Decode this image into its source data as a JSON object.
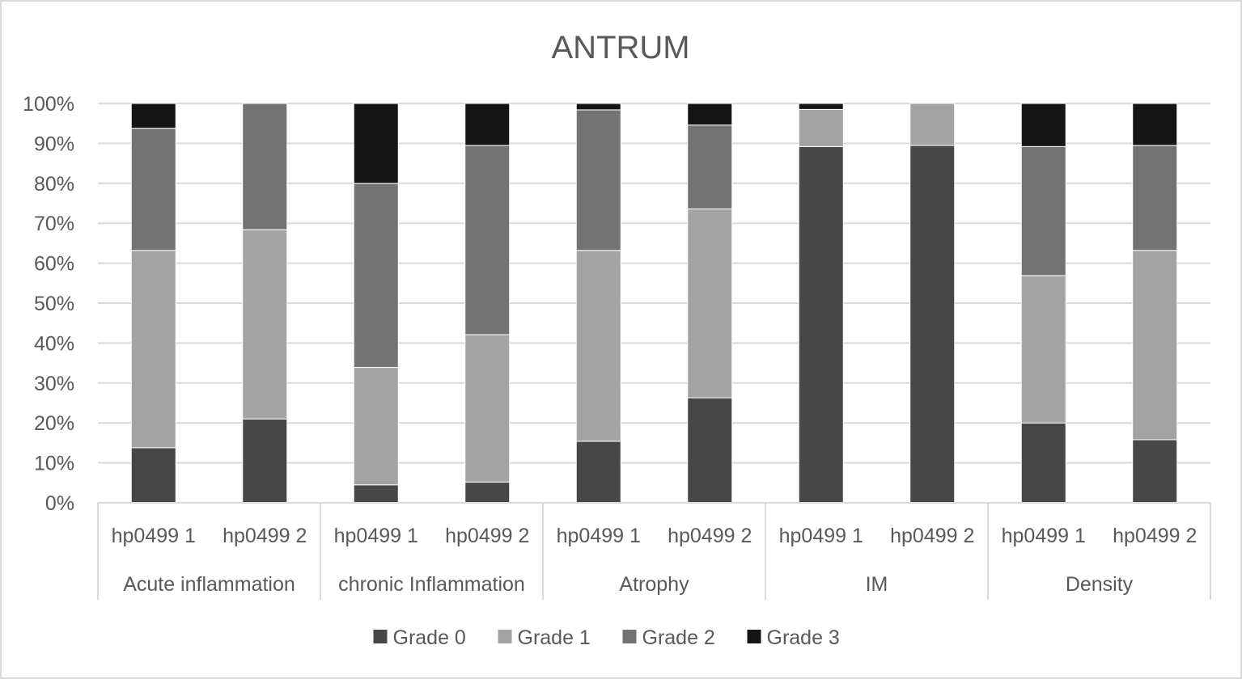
{
  "chart_data": {
    "type": "bar",
    "stacked": "percent",
    "title": "ANTRUM",
    "xlabel": "",
    "ylabel": "",
    "ylim": [
      0,
      100
    ],
    "y_ticks": [
      "0%",
      "10%",
      "20%",
      "30%",
      "40%",
      "50%",
      "60%",
      "70%",
      "80%",
      "90%",
      "100%"
    ],
    "grid": true,
    "legend_position": "bottom",
    "groups": [
      {
        "label": "Acute inflammation",
        "categories": [
          "hp0499 1",
          "hp0499 2"
        ]
      },
      {
        "label": "chronic Inflammation",
        "categories": [
          "hp0499 1",
          "hp0499 2"
        ]
      },
      {
        "label": "Atrophy",
        "categories": [
          "hp0499 1",
          "hp0499 2"
        ]
      },
      {
        "label": "IM",
        "categories": [
          "hp0499 1",
          "hp0499 2"
        ]
      },
      {
        "label": "Density",
        "categories": [
          "hp0499 1",
          "hp0499 2"
        ]
      }
    ],
    "series": [
      {
        "name": "Grade 0",
        "color": "#474747",
        "values": [
          13.8,
          21.0,
          4.5,
          5.2,
          15.4,
          26.3,
          89.2,
          89.5,
          20.0,
          15.8
        ]
      },
      {
        "name": "Grade 1",
        "color": "#a3a3a3",
        "values": [
          49.4,
          47.4,
          29.4,
          36.9,
          47.8,
          47.3,
          9.3,
          10.5,
          36.9,
          47.4
        ]
      },
      {
        "name": "Grade 2",
        "color": "#737373",
        "values": [
          30.6,
          31.6,
          46.1,
          47.4,
          35.2,
          21.0,
          0.0,
          0.0,
          32.3,
          26.3
        ]
      },
      {
        "name": "Grade 3",
        "color": "#151515",
        "values": [
          6.2,
          0.0,
          20.0,
          10.5,
          1.6,
          5.4,
          1.5,
          0.0,
          10.8,
          10.5
        ]
      }
    ]
  }
}
